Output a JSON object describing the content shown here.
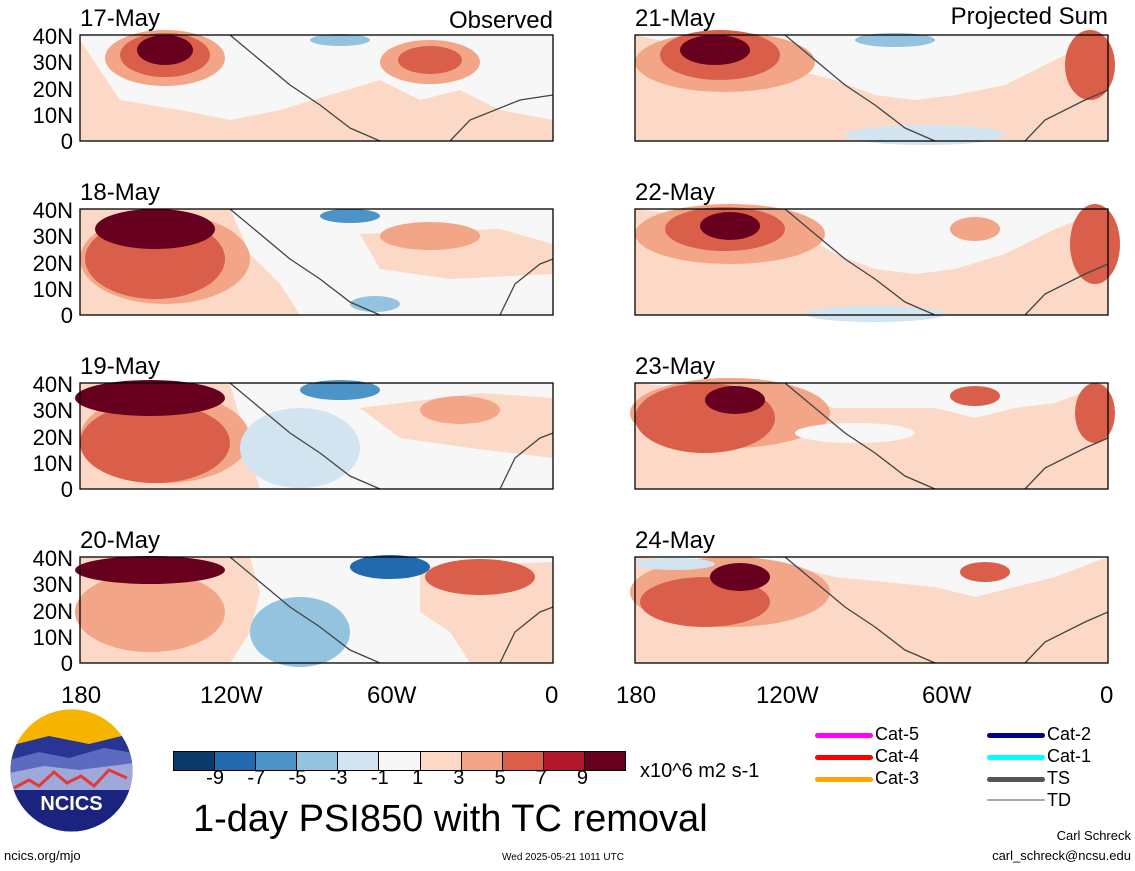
{
  "panels": [
    {
      "date": "17-May",
      "corner": "Observed"
    },
    {
      "date": "21-May",
      "corner": "Projected Sum"
    },
    {
      "date": "18-May",
      "corner": ""
    },
    {
      "date": "22-May",
      "corner": ""
    },
    {
      "date": "19-May",
      "corner": ""
    },
    {
      "date": "23-May",
      "corner": ""
    },
    {
      "date": "20-May",
      "corner": ""
    },
    {
      "date": "24-May",
      "corner": ""
    }
  ],
  "lat_labels": [
    "40N",
    "30N",
    "20N",
    "10N",
    "0"
  ],
  "lon_labels": [
    "180",
    "120W",
    "60W",
    "0"
  ],
  "colorbar": {
    "colors": [
      "#0c3a6a",
      "#2369ad",
      "#4c94c7",
      "#93c3df",
      "#d1e4f0",
      "#f7f7f7",
      "#fbd9c6",
      "#f2a587",
      "#d95f4a",
      "#b2182b",
      "#67001f"
    ],
    "ticks": [
      "-9",
      "-7",
      "-5",
      "-3",
      "-1",
      "1",
      "3",
      "5",
      "7",
      "9"
    ],
    "units": "x10^6 m2 s-1"
  },
  "title": "1-day PSI850 with TC removal",
  "legend": [
    {
      "label": "Cat-5",
      "color": "#ff00ff"
    },
    {
      "label": "Cat-4",
      "color": "#ff0000"
    },
    {
      "label": "Cat-3",
      "color": "#ffa500"
    },
    {
      "label": "Cat-2",
      "color": "#00008b"
    },
    {
      "label": "Cat-1",
      "color": "#00ffff"
    },
    {
      "label": "TS",
      "color": "#555555"
    },
    {
      "label": "TD",
      "color": "#aaaaaa"
    }
  ],
  "logo": {
    "text": "NCICS"
  },
  "footer": {
    "left": "ncics.org/mjo",
    "center": "Wed 2025-05-21 1011 UTC",
    "right_name": "Carl Schreck",
    "right_email": "carl_schreck@ncsu.edu"
  }
}
